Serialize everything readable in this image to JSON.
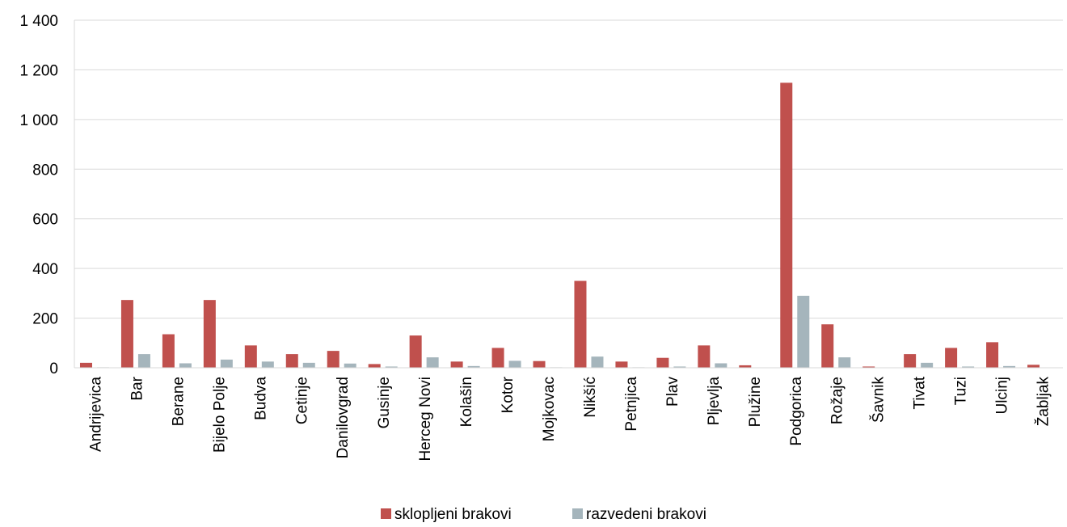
{
  "chart_data": {
    "type": "bar",
    "categories": [
      "Andrijevica",
      "Bar",
      "Berane",
      "Bijelo Polje",
      "Budva",
      "Cetinje",
      "Danilovgrad",
      "Gusinje",
      "Herceg Novi",
      "Kolašin",
      "Kotor",
      "Mojkovac",
      "Nikšić",
      "Petnjica",
      "Plav",
      "Pljevlja",
      "Plužine",
      "Podgorica",
      "Rožaje",
      "Šavnik",
      "Tivat",
      "Tuzi",
      "Ulcinj",
      "Žabljak"
    ],
    "series": [
      {
        "name": "sklopljeni brakovi",
        "color": "#c0504d",
        "values": [
          20,
          273,
          135,
          273,
          90,
          55,
          68,
          15,
          130,
          25,
          80,
          27,
          350,
          25,
          40,
          90,
          10,
          1148,
          175,
          5,
          55,
          80,
          103,
          12
        ]
      },
      {
        "name": "razvedeni brakovi",
        "color": "#a5b5bc",
        "values": [
          2,
          55,
          18,
          33,
          25,
          20,
          17,
          5,
          42,
          7,
          28,
          2,
          45,
          2,
          5,
          18,
          1,
          290,
          42,
          1,
          20,
          5,
          7,
          1
        ]
      }
    ],
    "yticks": [
      "0",
      "200",
      "400",
      "600",
      "800",
      "1 000",
      "1 200",
      "1 400"
    ],
    "ylim": [
      0,
      1400
    ],
    "grid": true,
    "legend_position": "bottom"
  }
}
